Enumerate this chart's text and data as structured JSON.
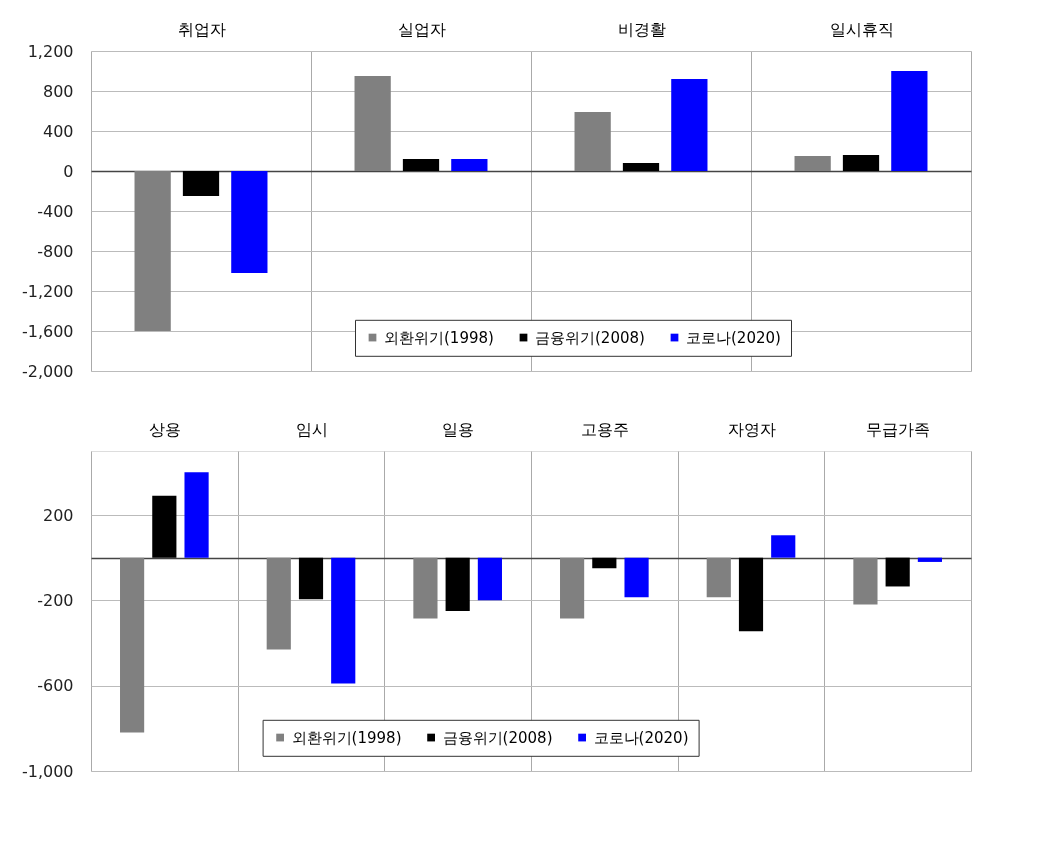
{
  "chart_data": [
    {
      "type": "bar",
      "categories": [
        "취업자",
        "실업자",
        "비경활",
        "일시휴직"
      ],
      "series": [
        {
          "name": "외환위기(1998)",
          "color": "#808080",
          "values": [
            -1600,
            950,
            590,
            150
          ]
        },
        {
          "name": "금융위기(2008)",
          "color": "#000000",
          "values": [
            -250,
            120,
            80,
            160
          ]
        },
        {
          "name": "코로나(2020)",
          "color": "#0000ff",
          "values": [
            -1020,
            120,
            920,
            1000
          ]
        }
      ],
      "ylim": [
        -2000,
        1200
      ],
      "yticks": [
        {
          "value": 1200,
          "label": "1,200"
        },
        800,
        400,
        0,
        -400,
        -800,
        {
          "value": -1200,
          "label": "-1,200"
        },
        {
          "value": -1600,
          "label": "-1,600"
        },
        {
          "value": -2000,
          "label": "-2,000"
        }
      ],
      "grid": "y",
      "legend": "bottom"
    },
    {
      "type": "bar",
      "categories": [
        "상용",
        "임시",
        "일용",
        "고용주",
        "자영자",
        "무급가족"
      ],
      "series": [
        {
          "name": "외환위기(1998)",
          "color": "#808080",
          "values": [
            -820,
            -430,
            -285,
            -285,
            -185,
            -220
          ]
        },
        {
          "name": "금융위기(2008)",
          "color": "#000000",
          "values": [
            290,
            -195,
            -250,
            -50,
            -345,
            -135
          ]
        },
        {
          "name": "코로나(2020)",
          "color": "#0000ff",
          "values": [
            400,
            -590,
            -200,
            -185,
            105,
            -20
          ]
        }
      ],
      "ylim": [
        -1000,
        500
      ],
      "yticks": [
        200,
        {
          "value": 0,
          "label": null
        },
        -200,
        -600,
        {
          "value": -1000,
          "label": "-1,000"
        }
      ],
      "grid": "y",
      "legend": "bottom"
    }
  ]
}
